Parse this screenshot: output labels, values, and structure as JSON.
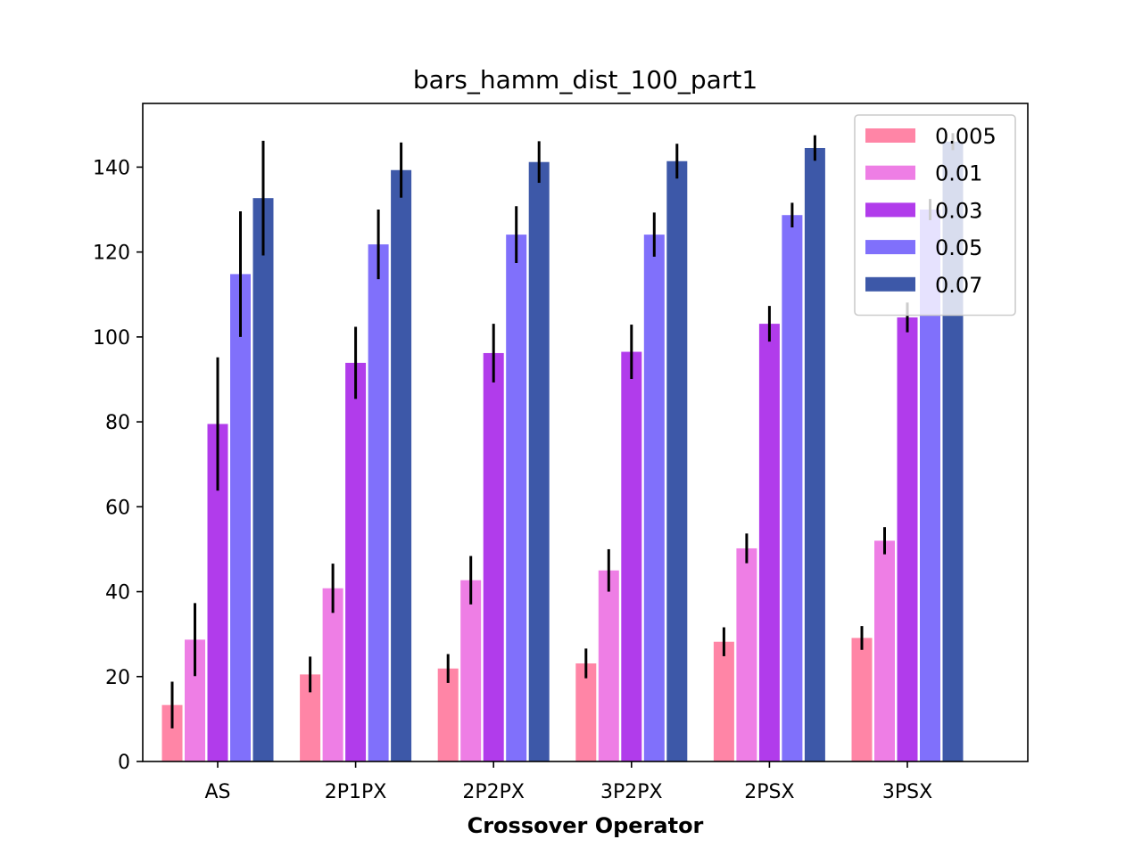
{
  "chart_data": {
    "type": "bar",
    "title": "bars_hamm_dist_100_part1",
    "xlabel": "Crossover Operator",
    "ylabel": "",
    "categories": [
      "AS",
      "2P1PX",
      "2P2PX",
      "3P2PX",
      "2PSX",
      "3PSX"
    ],
    "ylim": [
      0,
      155
    ],
    "yticks": [
      "0",
      "20",
      "40",
      "60",
      "80",
      "100",
      "120",
      "140"
    ],
    "grid": false,
    "legend_position": "top-right",
    "series": [
      {
        "name": "0.005",
        "color": "#ff85a6",
        "values": [
          13.3,
          20.5,
          21.9,
          23.1,
          28.2,
          29.1
        ],
        "errors": [
          5.5,
          4.2,
          3.4,
          3.5,
          3.4,
          2.8
        ]
      },
      {
        "name": "0.01",
        "color": "#ee7ee5",
        "values": [
          28.7,
          40.8,
          42.7,
          45.0,
          50.2,
          52.0
        ],
        "errors": [
          8.6,
          5.8,
          5.7,
          5.0,
          3.5,
          3.2
        ]
      },
      {
        "name": "0.03",
        "color": "#b13ceb",
        "values": [
          79.5,
          93.9,
          96.2,
          96.5,
          103.1,
          104.6
        ],
        "errors": [
          15.7,
          8.5,
          6.9,
          6.4,
          4.2,
          3.5
        ]
      },
      {
        "name": "0.05",
        "color": "#8070fb",
        "values": [
          114.8,
          121.8,
          124.1,
          124.1,
          128.7,
          130.0
        ],
        "errors": [
          14.8,
          8.2,
          6.7,
          5.2,
          2.9,
          2.5
        ]
      },
      {
        "name": "0.07",
        "color": "#3d58a8",
        "values": [
          132.7,
          139.3,
          141.2,
          141.4,
          144.5,
          146.0
        ],
        "errors": [
          13.5,
          6.5,
          4.9,
          4.1,
          3.0,
          2.0
        ]
      }
    ]
  }
}
